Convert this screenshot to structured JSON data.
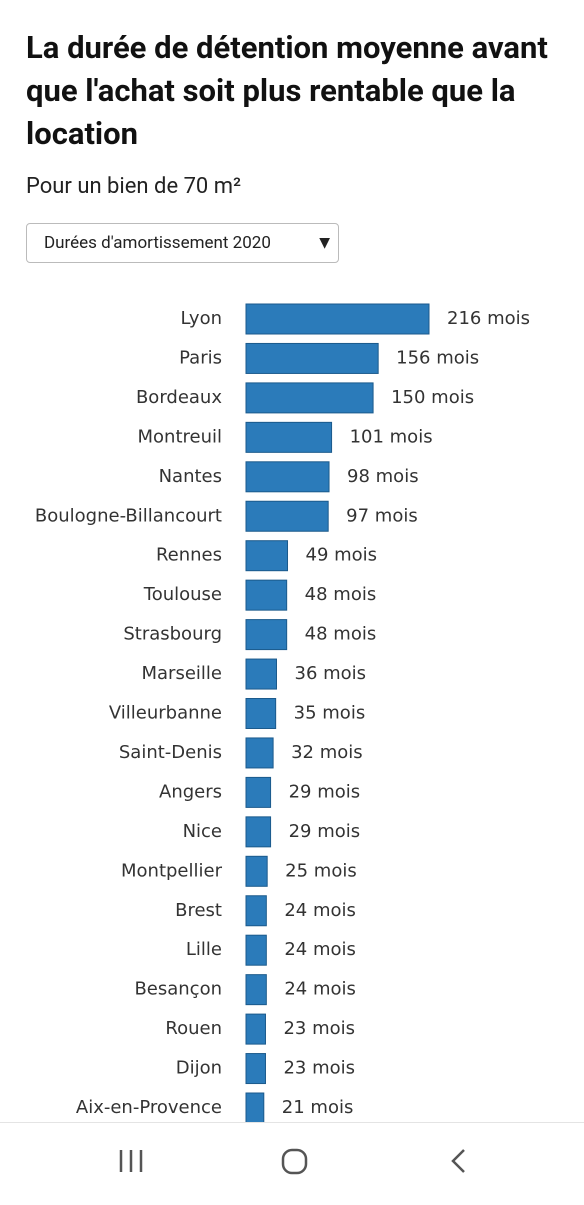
{
  "chart_data": {
    "type": "bar",
    "orientation": "horizontal",
    "title": "La durée de détention moyenne avant que l'achat soit plus rentable que la location",
    "subtitle": "Pour un bien de 70 m²",
    "categories": [
      "Lyon",
      "Paris",
      "Bordeaux",
      "Montreuil",
      "Nantes",
      "Boulogne-Billancourt",
      "Rennes",
      "Toulouse",
      "Strasbourg",
      "Marseille",
      "Villeurbanne",
      "Saint-Denis",
      "Angers",
      "Nice",
      "Montpellier",
      "Brest",
      "Lille",
      "Besançon",
      "Rouen",
      "Dijon",
      "Aix-en-Provence"
    ],
    "values": [
      216,
      156,
      150,
      101,
      98,
      97,
      49,
      48,
      48,
      36,
      35,
      32,
      29,
      29,
      25,
      24,
      24,
      24,
      23,
      23,
      21
    ],
    "value_labels": [
      "216 mois",
      "156 mois",
      "150 mois",
      "101 mois",
      "98 mois",
      "97 mois",
      "49 mois",
      "48 mois",
      "48 mois",
      "36 mois",
      "35 mois",
      "32 mois",
      "29 mois",
      "29 mois",
      "25 mois",
      "24 mois",
      "24 mois",
      "24 mois",
      "23 mois",
      "23 mois",
      "21 mois"
    ],
    "color": "#2b7bba"
  },
  "dropdown": {
    "label": "Durées d'amortissement 2020"
  }
}
